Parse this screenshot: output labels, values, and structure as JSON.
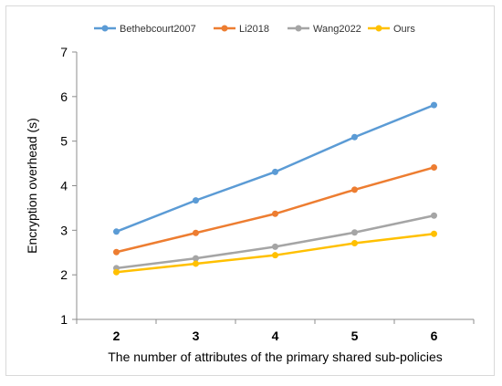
{
  "chart_data": {
    "type": "line",
    "title": "",
    "xlabel": "The number of attributes of the primary shared sub-policies",
    "ylabel": "Encryption overhead (s)",
    "x": [
      2,
      3,
      4,
      5,
      6
    ],
    "xlim": [
      1.5,
      6.5
    ],
    "ylim": [
      1,
      7
    ],
    "yticks": [
      1,
      2,
      3,
      4,
      5,
      6,
      7
    ],
    "grid": false,
    "legend_position": "top",
    "series": [
      {
        "name": "Bethebcourt2007",
        "color": "#5b9bd5",
        "values": [
          2.97,
          3.67,
          4.31,
          5.09,
          5.81
        ]
      },
      {
        "name": "Li2018",
        "color": "#ed7d31",
        "values": [
          2.51,
          2.94,
          3.37,
          3.91,
          4.41
        ]
      },
      {
        "name": "Wang2022",
        "color": "#a5a5a5",
        "values": [
          2.15,
          2.37,
          2.63,
          2.95,
          3.33
        ]
      },
      {
        "name": "Ours",
        "color": "#ffc000",
        "values": [
          2.06,
          2.25,
          2.44,
          2.71,
          2.92
        ]
      }
    ]
  }
}
